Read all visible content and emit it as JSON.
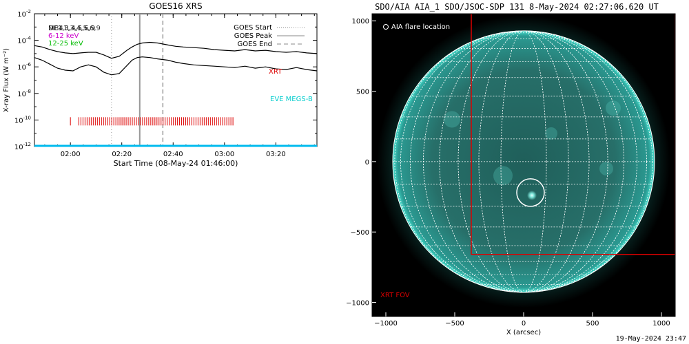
{
  "footer_timestamp": "19-May-2024 23:47",
  "chart_data": [
    {
      "type": "line",
      "title": "GOES16 XRS",
      "xlabel": "Start Time (08-May-24 01:46:00)",
      "ylabel": "X-ray Flux (W m⁻²)",
      "x_unit": "minutes after 08-May-24 01:46:00",
      "xlim": [
        0,
        110
      ],
      "ylim_log10": [
        -12,
        -2
      ],
      "y_scale": "log",
      "x_ticks": [
        {
          "label": "02:00",
          "x": 14
        },
        {
          "label": "02:20",
          "x": 34
        },
        {
          "label": "02:40",
          "x": 54
        },
        {
          "label": "03:00",
          "x": 74
        },
        {
          "label": "03:20",
          "x": 94
        }
      ],
      "y_ticks": [
        {
          "base": "10",
          "exp": "-2",
          "value": -2
        },
        {
          "base": "10",
          "exp": "-4",
          "value": -4
        },
        {
          "base": "10",
          "exp": "-6",
          "value": -6
        },
        {
          "base": "10",
          "exp": "-8",
          "value": -8
        },
        {
          "base": "10",
          "exp": "-10",
          "value": -10
        },
        {
          "base": "10",
          "exp": "-12",
          "value": -12
        }
      ],
      "top_legend": [
        {
          "text": "DE1,3,4,5,6,9",
          "color": "#000000"
        },
        {
          "text": "6-12 keV",
          "color": "#cc00cc"
        },
        {
          "text": "12-25 keV",
          "color": "#00bb00"
        }
      ],
      "overprint_label": "MB41,3,4,5,6,9",
      "line_legend": [
        {
          "label": "GOES Start",
          "style": "dotted",
          "color": "#888888"
        },
        {
          "label": "GOES Peak",
          "style": "solid",
          "color": "#888888"
        },
        {
          "label": "GOES End",
          "style": "dashed",
          "color": "#888888"
        }
      ],
      "event_lines": {
        "start": 30,
        "peak": 41,
        "end": 50
      },
      "series": [
        {
          "name": "",
          "color": "#000000",
          "x": [
            0,
            3,
            6,
            9,
            12,
            15,
            18,
            21,
            24,
            27,
            30,
            33,
            36,
            38,
            40,
            42,
            45,
            48,
            52,
            55,
            58,
            62,
            66,
            70,
            74,
            78,
            82,
            86,
            90,
            94,
            98,
            102,
            106,
            110
          ],
          "log10_flux": [
            -4.4,
            -4.5,
            -4.7,
            -4.85,
            -4.95,
            -5.0,
            -4.95,
            -4.9,
            -4.9,
            -5.1,
            -5.35,
            -5.2,
            -4.75,
            -4.5,
            -4.3,
            -4.2,
            -4.15,
            -4.2,
            -4.35,
            -4.45,
            -4.5,
            -4.55,
            -4.6,
            -4.7,
            -4.75,
            -4.8,
            -4.7,
            -4.8,
            -4.75,
            -4.85,
            -4.9,
            -4.85,
            -4.95,
            -5.0
          ]
        },
        {
          "name": "",
          "color": "#000000",
          "x": [
            0,
            3,
            6,
            9,
            12,
            15,
            18,
            21,
            24,
            27,
            30,
            33,
            36,
            38,
            40,
            42,
            45,
            48,
            52,
            55,
            58,
            62,
            66,
            70,
            74,
            78,
            82,
            86,
            90,
            94,
            98,
            102,
            106,
            110
          ],
          "log10_flux": [
            -5.3,
            -5.5,
            -5.8,
            -6.1,
            -6.25,
            -6.3,
            -6.0,
            -5.85,
            -6.0,
            -6.4,
            -6.6,
            -6.5,
            -5.9,
            -5.5,
            -5.3,
            -5.25,
            -5.3,
            -5.4,
            -5.5,
            -5.65,
            -5.75,
            -5.85,
            -5.9,
            -5.95,
            -6.0,
            -6.05,
            -5.95,
            -6.1,
            -6.0,
            -6.15,
            -6.2,
            -6.05,
            -6.2,
            -6.3
          ]
        }
      ],
      "xrt_label": {
        "text": "XRT",
        "color": "#dd0000"
      },
      "xrt_ticks_x": [
        14.0,
        17.3,
        18.1,
        18.9,
        19.7,
        20.5,
        21.3,
        22.1,
        22.9,
        23.7,
        24.5,
        25.3,
        26.1,
        26.9,
        27.7,
        28.5,
        29.3,
        30.1,
        30.9,
        31.7,
        32.5,
        33.3,
        34.1,
        34.9,
        35.7,
        36.5,
        37.3,
        38.1,
        38.9,
        39.7,
        40.5,
        41.3,
        42.1,
        42.9,
        43.7,
        44.5,
        45.3,
        46.1,
        46.9,
        47.7,
        48.5,
        49.3,
        50.1,
        50.9,
        51.7,
        52.5,
        53.3,
        54.1,
        54.9,
        55.7,
        56.5,
        57.3,
        58.1,
        58.9,
        59.7,
        60.5,
        61.3,
        62.1,
        62.9,
        63.7,
        64.5,
        65.3,
        66.1,
        66.9,
        67.7,
        68.5,
        69.3,
        70.1,
        70.9,
        71.7,
        72.5,
        73.3,
        74.1,
        74.9,
        75.7,
        76.5,
        77.3
      ],
      "xrt_level_log10": -10.1,
      "eve_label": {
        "text": "EVE MEGS-B",
        "color": "#00cccc"
      },
      "baseline": {
        "log10_flux": -11.95,
        "color": "#00bbee"
      }
    },
    {
      "type": "image",
      "title": "SDO/AIA AIA_1 SDO/JSOC-SDP 131  8-May-2024 02:27:06.620 UT",
      "xlabel": "X (arcsec)",
      "xlim": [
        -1100,
        1100
      ],
      "ylim": [
        -1100,
        1050
      ],
      "x_ticks": [
        {
          "label": "−1000",
          "v": -1000
        },
        {
          "label": "−500",
          "v": -500
        },
        {
          "label": "0",
          "v": 0
        },
        {
          "label": "500",
          "v": 500
        },
        {
          "label": "1000",
          "v": 1000
        }
      ],
      "y_ticks": [
        {
          "label": "1000",
          "v": 1000
        },
        {
          "label": "500",
          "v": 500
        },
        {
          "label": "0",
          "v": 0
        },
        {
          "label": "−500",
          "v": -500
        },
        {
          "label": "−1000",
          "v": -1000
        }
      ],
      "legend_label": "AIA flare location",
      "solar_radius_arcsec": 950,
      "grid_step_deg": 10,
      "flare_location": {
        "x": 50,
        "y": -220,
        "r": 100
      },
      "xrt_fov": {
        "label": "XRT FOV",
        "color": "#dd0000",
        "x0": -380,
        "x1": 1100,
        "y0": -700,
        "y1": 1100
      },
      "sun_color": "#2a9a92",
      "limb_color": "#44ddcc",
      "grid_color": "#ffffff"
    }
  ]
}
